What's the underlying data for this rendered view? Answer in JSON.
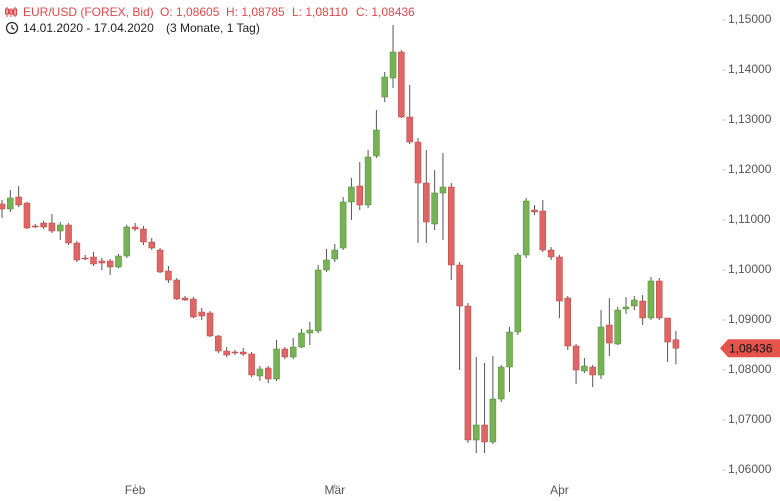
{
  "chart_data": {
    "type": "candlestick",
    "title": "EUR/USD (FOREX, Bid)",
    "ohlc_labels": [
      "O: 1,08605",
      "H: 1,08785",
      "L: 1,08110",
      "C: 1,08436"
    ],
    "date_range": "14.01.2020 - 17.04.2020",
    "period": "(3 Monate, 1 Tag)",
    "categories": [
      null,
      null,
      null,
      null,
      null,
      null,
      null,
      null,
      null,
      null,
      null,
      null,
      null,
      null,
      null,
      null,
      "Feb",
      null,
      null,
      null,
      null,
      null,
      null,
      null,
      null,
      null,
      null,
      null,
      null,
      null,
      null,
      null,
      null,
      null,
      null,
      null,
      null,
      null,
      null,
      null,
      "Mär",
      null,
      null,
      null,
      null,
      null,
      null,
      null,
      null,
      null,
      null,
      null,
      null,
      null,
      null,
      null,
      null,
      null,
      null,
      null,
      null,
      null,
      null,
      null,
      null,
      null,
      null,
      "Apr",
      null,
      null,
      null,
      null,
      null,
      null,
      null,
      null,
      null,
      null,
      null,
      null,
      null,
      null
    ],
    "up_color": "#77b255",
    "down_color": "#e06666",
    "open": [
      1.1132,
      1.1122,
      1.1146,
      1.1134,
      1.1088,
      1.1094,
      1.1094,
      1.1078,
      1.109,
      1.1054,
      1.1024,
      1.1026,
      1.1018,
      1.1018,
      1.1006,
      1.1028,
      1.1086,
      1.1082,
      1.1056,
      1.104,
      1.0998,
      1.098,
      1.0944,
      1.0942,
      1.0916,
      1.0914,
      1.0868,
      1.0838,
      1.0836,
      1.0836,
      1.0832,
      1.0788,
      1.0804,
      1.0782,
      1.0842,
      1.0826,
      1.0846,
      1.0874,
      1.0878,
      1.1,
      1.1022,
      1.1044,
      1.1136,
      1.1168,
      1.113,
      1.1228,
      1.1346,
      1.1384,
      1.1436,
      1.1306,
      1.1256,
      1.1174,
      1.1092,
      1.1154,
      1.1166,
      1.101,
      1.0928,
      1.066,
      1.069,
      1.0656,
      1.0742,
      1.0806,
      1.0876,
      1.103,
      1.112,
      1.1118,
      1.104,
      1.1026,
      1.0944,
      1.0848,
      1.0798,
      1.0806,
      1.079,
      1.089,
      1.0852,
      1.0922,
      1.0928,
      1.0938,
      1.0904,
      1.0978,
      1.0904,
      1.08605
    ],
    "high": [
      1.114,
      1.116,
      1.1168,
      1.1136,
      1.1092,
      1.1098,
      1.1112,
      1.1096,
      1.1094,
      1.1058,
      1.103,
      1.1036,
      1.1024,
      1.1022,
      1.1032,
      1.109,
      1.1094,
      1.1088,
      1.1064,
      1.1044,
      1.1008,
      1.0984,
      1.0948,
      1.0946,
      1.0924,
      1.0918,
      1.087,
      1.0846,
      1.084,
      1.0844,
      1.0836,
      1.0808,
      1.0808,
      1.086,
      1.0846,
      1.0864,
      1.0882,
      1.0896,
      1.101,
      1.1042,
      1.1052,
      1.1146,
      1.1184,
      1.1216,
      1.124,
      1.132,
      1.1396,
      1.149,
      1.144,
      1.137,
      1.1264,
      1.124,
      1.12,
      1.1234,
      1.1174,
      1.1016,
      1.0934,
      1.0826,
      1.0814,
      1.0828,
      1.081,
      1.0886,
      1.1034,
      1.1144,
      1.113,
      1.114,
      1.1046,
      1.103,
      1.0948,
      1.0852,
      1.0824,
      1.081,
      1.092,
      1.0944,
      1.0926,
      1.0946,
      1.0948,
      1.095,
      1.0986,
      1.0984,
      1.0904,
      1.08785
    ],
    "low": [
      1.1104,
      1.1116,
      1.1126,
      1.1082,
      1.1084,
      1.1082,
      1.1074,
      1.106,
      1.105,
      1.1016,
      1.102,
      1.1008,
      1.1,
      1.099,
      1.1004,
      1.1024,
      1.1078,
      1.105,
      1.104,
      1.0994,
      1.0974,
      1.094,
      1.0938,
      1.0904,
      1.09,
      1.0866,
      1.0834,
      1.0826,
      1.083,
      1.0828,
      1.0786,
      1.0778,
      1.0774,
      1.0778,
      1.0822,
      1.0822,
      1.0844,
      1.085,
      1.0874,
      1.0996,
      1.1016,
      1.104,
      1.11,
      1.112,
      1.1124,
      1.1224,
      1.1336,
      1.1364,
      1.1304,
      1.1252,
      1.1054,
      1.1054,
      1.108,
      1.106,
      1.098,
      1.08,
      1.0654,
      1.0634,
      1.0634,
      1.0652,
      1.0736,
      1.0756,
      1.087,
      1.1024,
      1.111,
      1.1036,
      1.102,
      1.0904,
      1.084,
      1.0772,
      1.0794,
      1.0766,
      1.0782,
      1.0828,
      1.085,
      1.0912,
      1.092,
      1.089,
      1.09,
      1.09,
      1.0816,
      1.0811
    ],
    "close": [
      1.1122,
      1.1144,
      1.113,
      1.1084,
      1.1086,
      1.1086,
      1.1078,
      1.109,
      1.1054,
      1.102,
      1.1022,
      1.1012,
      1.1014,
      1.1006,
      1.1028,
      1.1086,
      1.1082,
      1.1056,
      1.1044,
      1.0996,
      1.098,
      1.0942,
      1.094,
      1.0906,
      1.0908,
      1.0868,
      1.0838,
      1.083,
      1.0834,
      1.0832,
      1.079,
      1.0802,
      1.0782,
      1.0842,
      1.0826,
      1.0846,
      1.0874,
      1.088,
      1.1,
      1.102,
      1.104,
      1.1136,
      1.1166,
      1.113,
      1.1226,
      1.128,
      1.1386,
      1.1436,
      1.1306,
      1.1256,
      1.1174,
      1.1096,
      1.1154,
      1.1166,
      1.101,
      1.0928,
      1.066,
      1.069,
      1.0656,
      1.0742,
      1.0806,
      1.0876,
      1.103,
      1.1138,
      1.1116,
      1.104,
      1.1026,
      1.0938,
      1.0848,
      1.08,
      1.0808,
      1.079,
      1.0886,
      1.0854,
      1.092,
      1.0926,
      1.094,
      1.0904,
      1.0978,
      1.0904,
      1.0856,
      1.08436
    ],
    "last_value": {
      "value": 1.08436,
      "label": "1,08436"
    },
    "ylim": [
      1.0538,
      1.154
    ],
    "yticks": [
      {
        "value": 1.06,
        "label": "1,06000"
      },
      {
        "value": 1.07,
        "label": "1,07000"
      },
      {
        "value": 1.08,
        "label": "1,08000"
      },
      {
        "value": 1.09,
        "label": "1,09000"
      },
      {
        "value": 1.1,
        "label": "1,10000"
      },
      {
        "value": 1.11,
        "label": "1,11000"
      },
      {
        "value": 1.12,
        "label": "1,12000"
      },
      {
        "value": 1.13,
        "label": "1,13000"
      },
      {
        "value": 1.14,
        "label": "1,14000"
      },
      {
        "value": 1.15,
        "label": "1,15000"
      }
    ],
    "grid": false
  }
}
